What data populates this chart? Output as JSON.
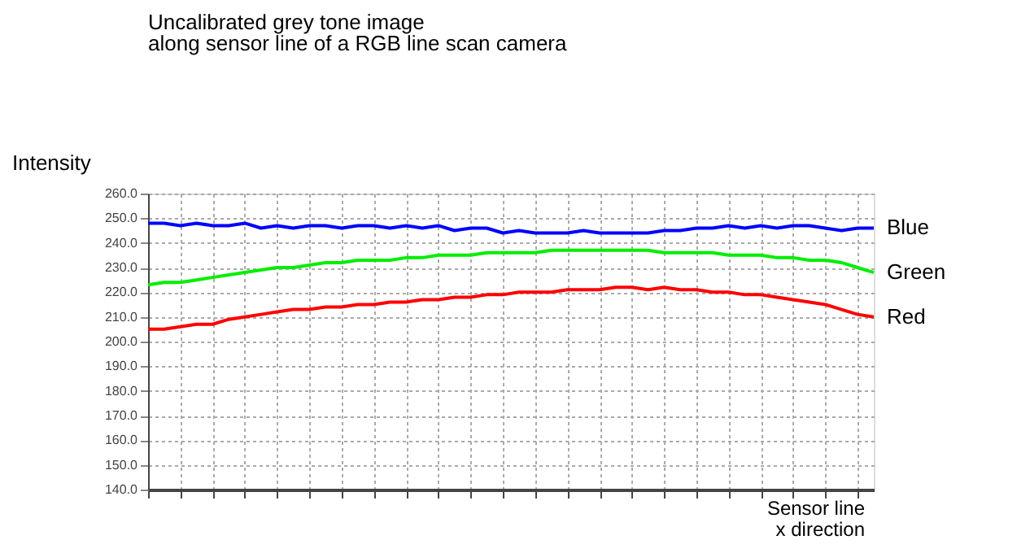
{
  "chart_data": {
    "type": "line",
    "title": "Uncalibrated grey tone image",
    "subtitle": "along sensor line of a RGB line scan camera",
    "xlabel": "Sensor line\nx direction",
    "ylabel": "Intensity",
    "categories": [
      null,
      null,
      null,
      null,
      null,
      null,
      null,
      null,
      null,
      null,
      null,
      null,
      null,
      null,
      null,
      null,
      null,
      null,
      null,
      null,
      null,
      null,
      null,
      null,
      null,
      null,
      null,
      null,
      null,
      null,
      null,
      null,
      null,
      null,
      null,
      null,
      null,
      null,
      null,
      null,
      null,
      null,
      null,
      null,
      null,
      null
    ],
    "series": [
      {
        "name": "Blue",
        "color": "#0000ff",
        "values": [
          248,
          248,
          247,
          248,
          247,
          247,
          248,
          246,
          247,
          246,
          247,
          247,
          246,
          247,
          247,
          246,
          247,
          246,
          247,
          245,
          246,
          246,
          244,
          245,
          244,
          244,
          244,
          245,
          244,
          244,
          244,
          244,
          245,
          245,
          246,
          246,
          247,
          246,
          247,
          246,
          247,
          247,
          246,
          245,
          246,
          246
        ]
      },
      {
        "name": "Green",
        "color": "#00ee00",
        "values": [
          223,
          224,
          224,
          225,
          226,
          227,
          228,
          229,
          230,
          230,
          231,
          232,
          232,
          233,
          233,
          233,
          234,
          234,
          235,
          235,
          235,
          236,
          236,
          236,
          236,
          237,
          237,
          237,
          237,
          237,
          237,
          237,
          236,
          236,
          236,
          236,
          235,
          235,
          235,
          234,
          234,
          233,
          233,
          232,
          230,
          228
        ]
      },
      {
        "name": "Red",
        "color": "#ff0000",
        "values": [
          205,
          205,
          206,
          207,
          207,
          209,
          210,
          211,
          212,
          213,
          213,
          214,
          214,
          215,
          215,
          216,
          216,
          217,
          217,
          218,
          218,
          219,
          219,
          220,
          220,
          220,
          221,
          221,
          221,
          222,
          222,
          221,
          222,
          221,
          221,
          220,
          220,
          219,
          219,
          218,
          217,
          216,
          215,
          213,
          211,
          210
        ]
      }
    ],
    "ylim": [
      140,
      260
    ],
    "yticks": [
      {
        "value": 140,
        "label": "140.0"
      },
      {
        "value": 150,
        "label": "150.0"
      },
      {
        "value": 160,
        "label": "160.0"
      },
      {
        "value": 170,
        "label": "170.0"
      },
      {
        "value": 180,
        "label": "180.0"
      },
      {
        "value": 190,
        "label": "190.0"
      },
      {
        "value": 200,
        "label": "200.0"
      },
      {
        "value": 210,
        "label": "210.0"
      },
      {
        "value": 220,
        "label": "220.0"
      },
      {
        "value": 230,
        "label": "230.0"
      },
      {
        "value": 240,
        "label": "240.0"
      },
      {
        "value": 250,
        "label": "250.0"
      },
      {
        "value": 260,
        "label": "260.0"
      }
    ],
    "grid": true,
    "legend": false,
    "tick_labels": "y",
    "marker": "none",
    "line_style": "solid"
  }
}
